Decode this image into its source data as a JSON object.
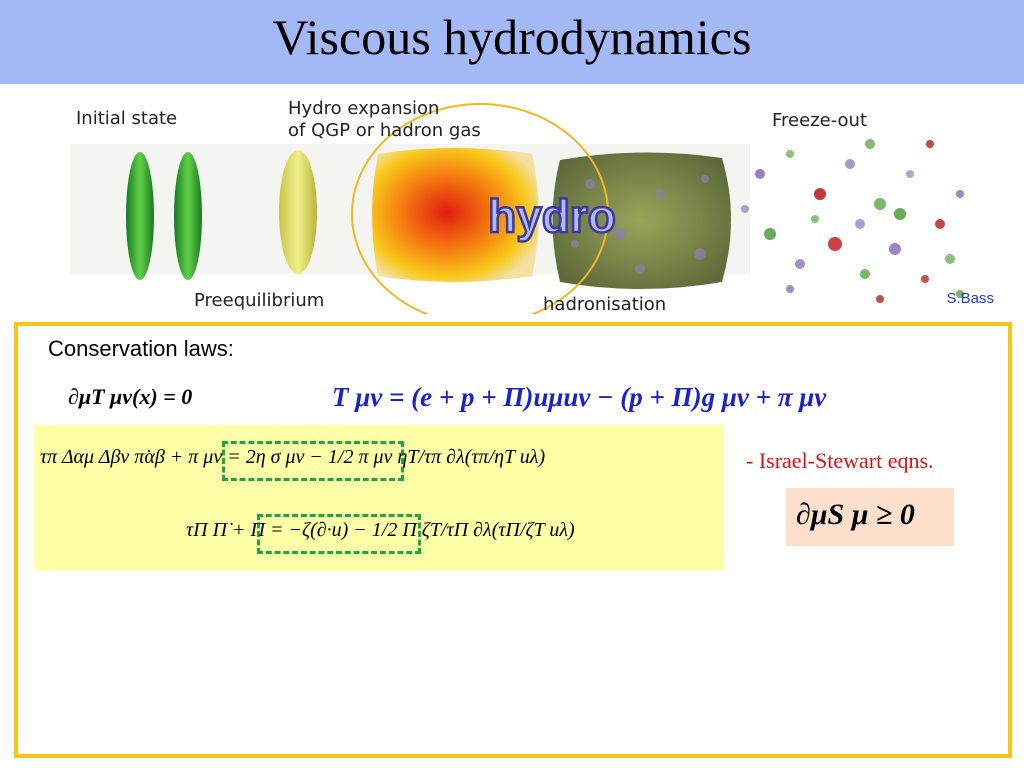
{
  "title": "Viscous hydrodynamics",
  "stages": {
    "initial": "Initial state",
    "hydro_expansion": "Hydro expansion\nof QGP or hadron gas",
    "freezeout": "Freeze-out",
    "preequilibrium": "Preequilibrium",
    "hadronisation": "hadronisation",
    "hydro_logo": "hydro"
  },
  "credit": "S.Bass",
  "conservation_label": "Conservation laws:",
  "equations": {
    "conservation": "∂μT μν(x) = 0",
    "tensor": "T μν = (e + p + Π)uμuν − (p + Π)g μν + π μν",
    "shear": "τπ Δαμ Δβν π̇αβ + π μν = 2η σ μν − 1/2 π μν ηT/τπ ∂λ(τπ/ηT uλ)",
    "bulk": "τΠ Π̇ + Π = −ζ(∂·u) − 1/2 Π ζT/τΠ ∂λ(τΠ/ζT uλ)",
    "entropy": "∂μS μ ≥ 0"
  },
  "israel_stewart": "- Israel-Stewart eqns.",
  "colors": {
    "title_bar": "#a3b9f6",
    "panel_border": "#f5c518",
    "highlight_box": "#ffffa8",
    "dash": "#1aa94a",
    "accent_red": "#dd1111",
    "accent_blue": "#1a23c8"
  }
}
